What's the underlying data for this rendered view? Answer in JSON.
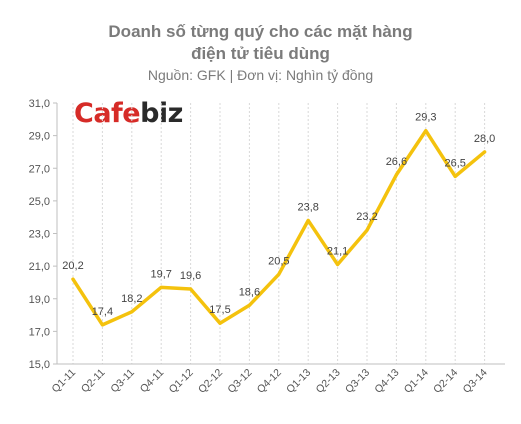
{
  "logo": {
    "cafe": "Cafe",
    "biz": "biz"
  },
  "chart_data": {
    "type": "line",
    "title_line1": "Doanh số từng quý cho các mặt hàng",
    "title_line2": "điện tử tiêu dùng",
    "subtitle": "Nguồn: GFK | Đơn vị: Nghìn tỷ đồng",
    "categories": [
      "Q1-11",
      "Q2-11",
      "Q3-11",
      "Q4-11",
      "Q1-12",
      "Q2-12",
      "Q3-12",
      "Q4-12",
      "Q1-13",
      "Q2-13",
      "Q3-13",
      "Q4-13",
      "Q1-14",
      "Q2-14",
      "Q3-14"
    ],
    "values": [
      20.2,
      17.4,
      18.2,
      19.7,
      19.6,
      17.5,
      18.6,
      20.5,
      23.8,
      21.1,
      23.2,
      26.6,
      29.3,
      26.5,
      28.0
    ],
    "value_labels": [
      "20,2",
      "17,4",
      "18,2",
      "19,7",
      "19,6",
      "17,5",
      "18,6",
      "20,5",
      "23,8",
      "21,1",
      "23,2",
      "26,6",
      "29,3",
      "26,5",
      "28,0"
    ],
    "yticks": [
      "15,0",
      "17,0",
      "19,0",
      "21,0",
      "23,0",
      "25,0",
      "27,0",
      "29,0",
      "31,0"
    ],
    "ylim": [
      15,
      31
    ],
    "line_color": "#f4c20d",
    "grid": "vertical dashed"
  }
}
